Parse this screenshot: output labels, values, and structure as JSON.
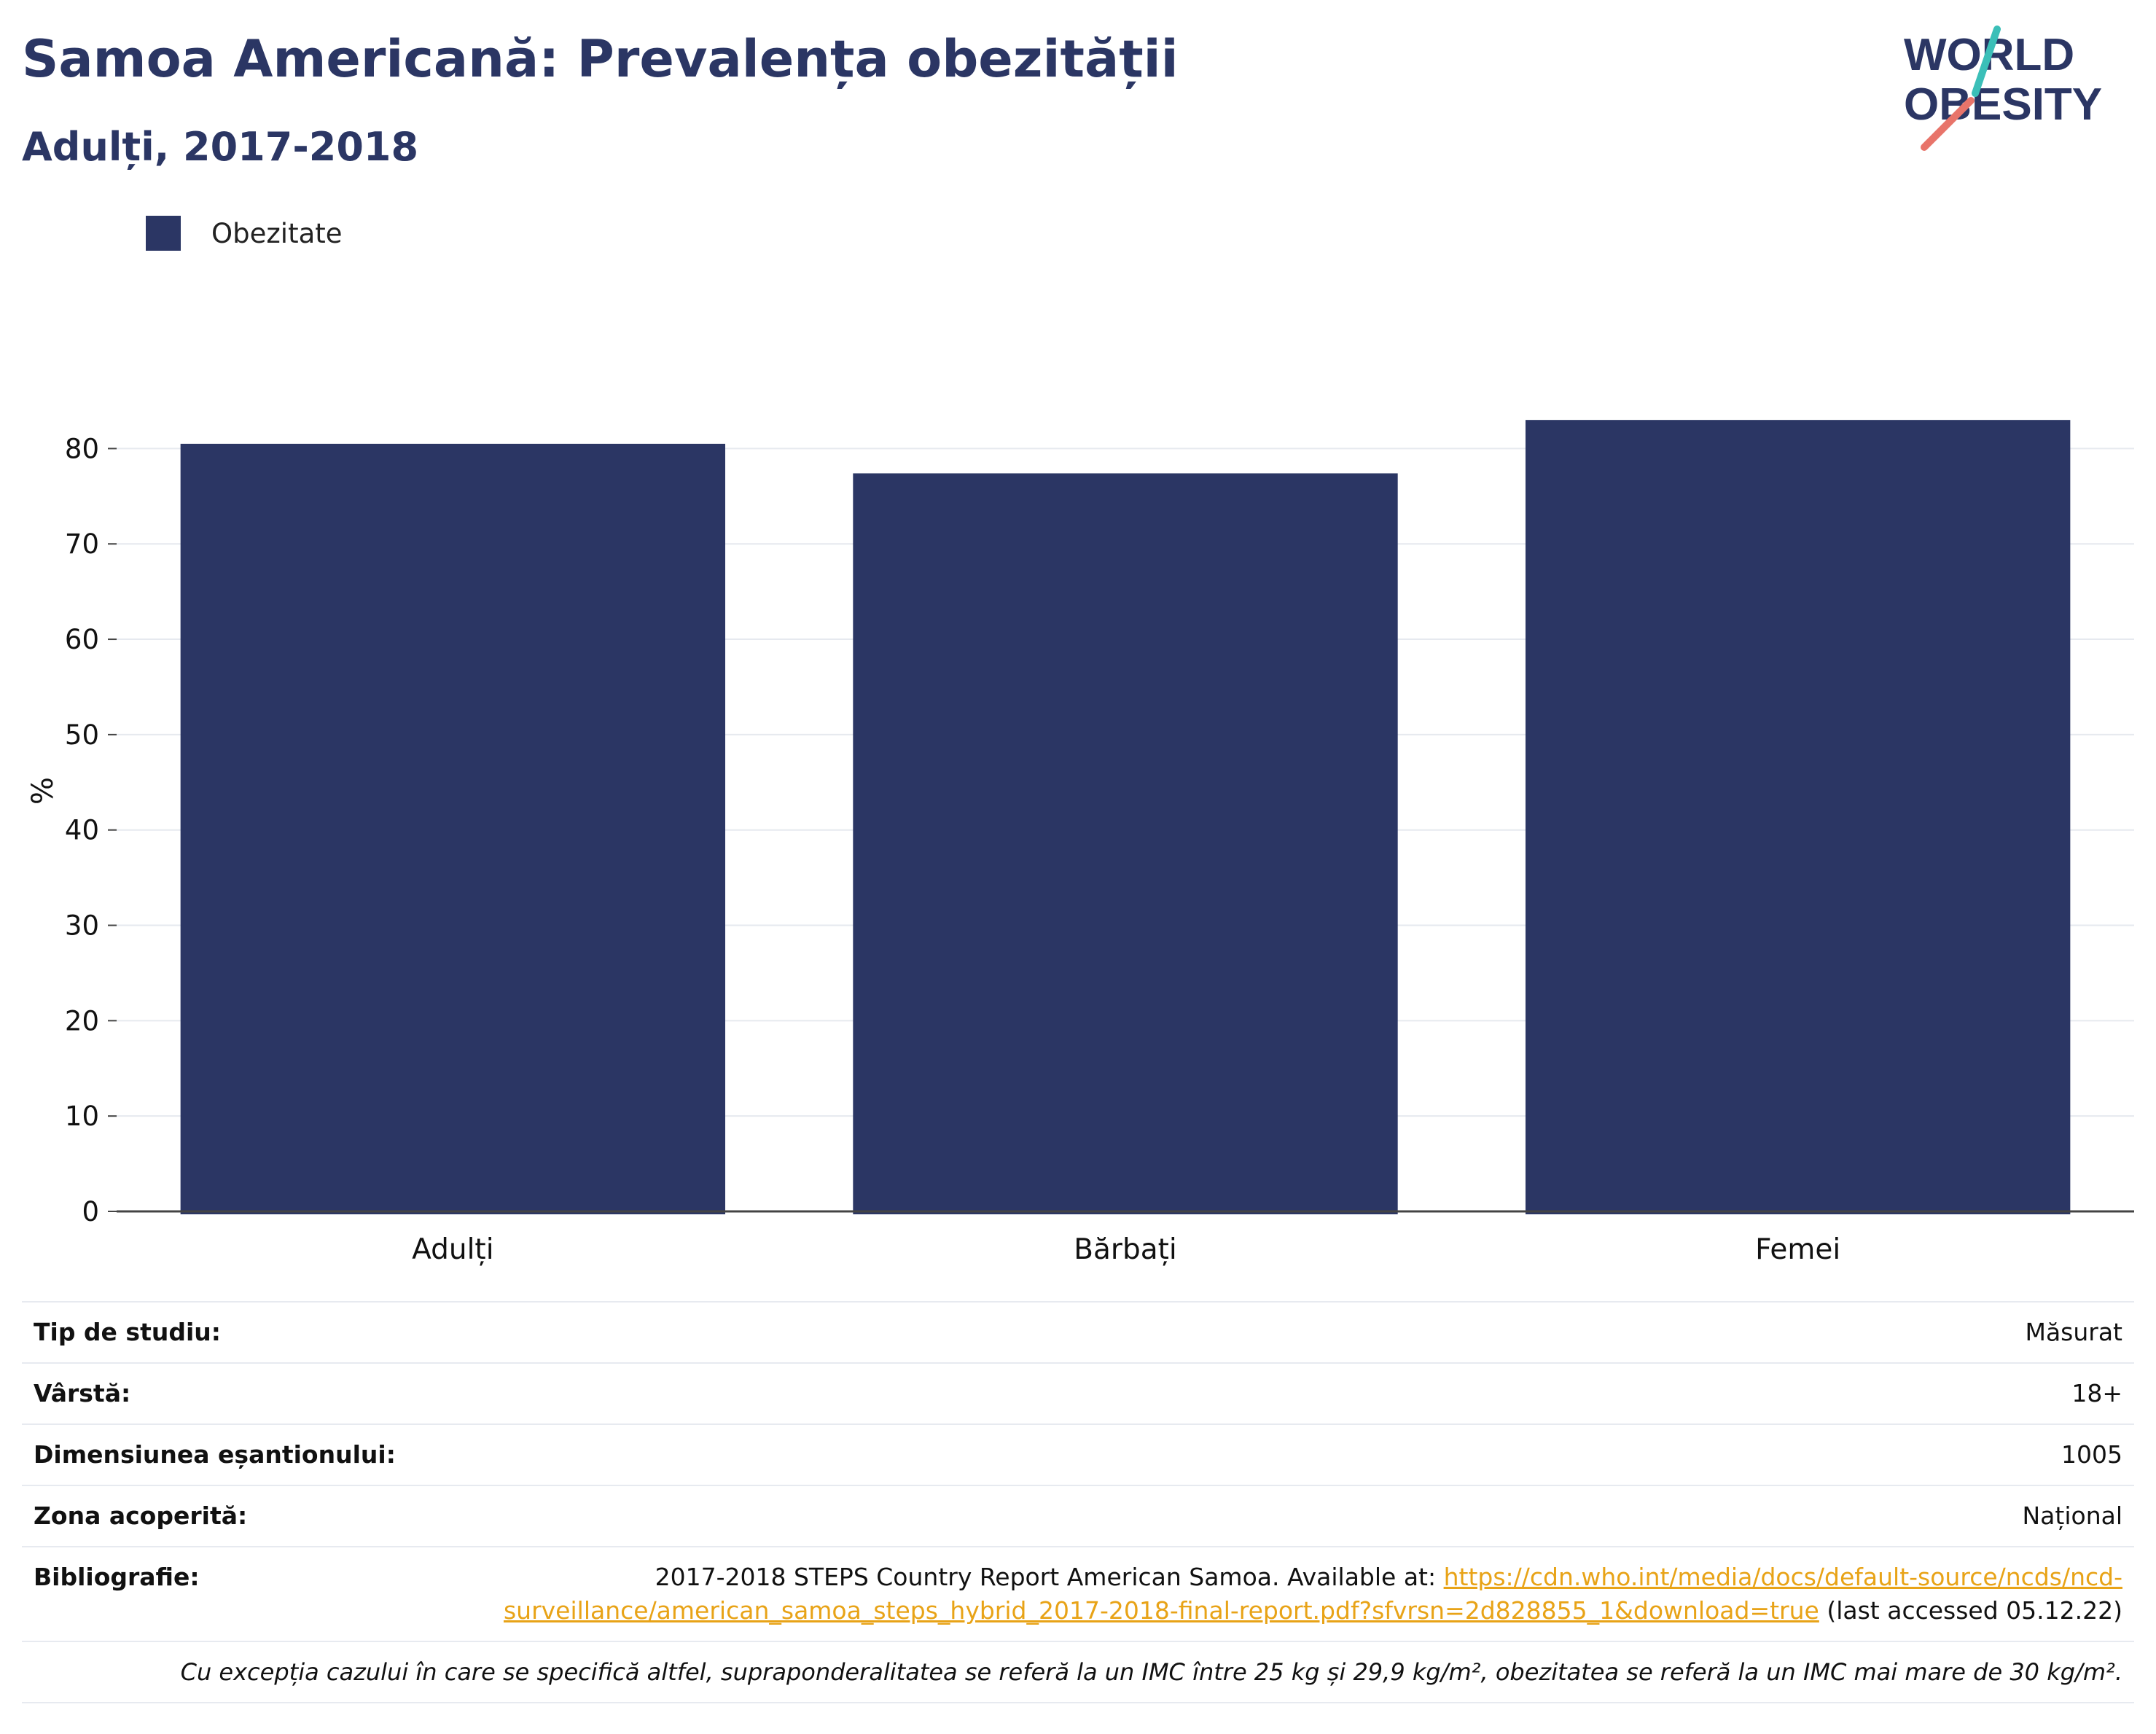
{
  "header": {
    "title": "Samoa Americană: Prevalența obezității",
    "subtitle": "Adulți, 2017-2018"
  },
  "logo": {
    "line1": "WORLD",
    "line2": "OBESITY",
    "slash_colors": [
      "#3bbfb8",
      "#e8746a"
    ]
  },
  "legend": {
    "label": "Obezitate"
  },
  "colors": {
    "bar": "#2b3664",
    "title": "#2b3664",
    "link": "#e8a317",
    "grid": "#e6e9ef"
  },
  "chart_data": {
    "type": "bar",
    "categories": [
      "Adulți",
      "Bărbați",
      "Femei"
    ],
    "series": [
      {
        "name": "Obezitate",
        "values": [
          80.5,
          77.4,
          83.0
        ]
      }
    ],
    "ylabel": "%",
    "xlabel": "",
    "ylim": [
      0,
      85
    ],
    "yticks": [
      0,
      10,
      20,
      30,
      40,
      50,
      60,
      70,
      80
    ],
    "grid": true,
    "legend_position": "top-left"
  },
  "info": {
    "study_type_label": "Tip de studiu:",
    "study_type_value": "Măsurat",
    "age_label": "Vârstă:",
    "age_value": "18+",
    "sample_label": "Dimensiunea eșantionului:",
    "sample_value": "1005",
    "area_label": "Zona acoperită:",
    "area_value": "Național",
    "bib_label": "Bibliografie:",
    "bib_text": "2017-2018 STEPS Country Report American Samoa. Available at: ",
    "bib_link": "https://cdn.who.int/media/docs/default-source/ncds/ncd-surveillance/american_samoa_steps_hybrid_2017-2018-final-report.pdf?sfvrsn=2d828855_1&download=true",
    "bib_suffix": " (last accessed 05.12.22)",
    "note": "Cu excepția cazului în care se specifică altfel, supraponderalitatea se referă la un IMC între 25 kg și 29,9 kg/m², obezitatea se referă la un IMC mai mare de 30 kg/m²."
  }
}
